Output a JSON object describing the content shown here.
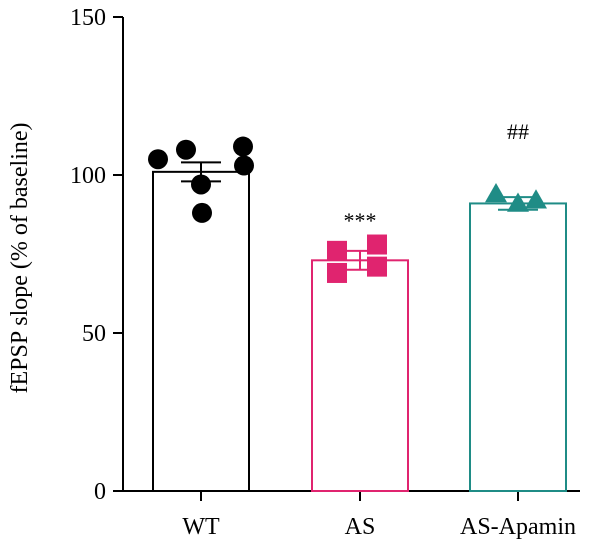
{
  "chart_data": {
    "type": "bar",
    "ylabel": "fEPSP slope (% of baseline)",
    "xlabel": "",
    "ylim": [
      0,
      150
    ],
    "yticks": [
      0,
      50,
      100,
      150
    ],
    "grid": false,
    "categories": [
      "WT",
      "AS",
      "AS-Apamin"
    ],
    "bars": [
      {
        "label": "WT",
        "mean": 101,
        "sem": 3,
        "color": "#000000",
        "marker": "circle",
        "annotation": "",
        "points": [
          105,
          108,
          109,
          103,
          97,
          88
        ]
      },
      {
        "label": "AS",
        "mean": 73,
        "sem": 3,
        "color": "#e0246f",
        "marker": "square",
        "annotation": "***",
        "points": [
          76,
          78,
          71,
          69
        ]
      },
      {
        "label": "AS-Apamin",
        "mean": 91,
        "sem": 2,
        "color": "#1f8c86",
        "marker": "triangle",
        "annotation": "##",
        "points": [
          94,
          91,
          92
        ]
      }
    ]
  }
}
